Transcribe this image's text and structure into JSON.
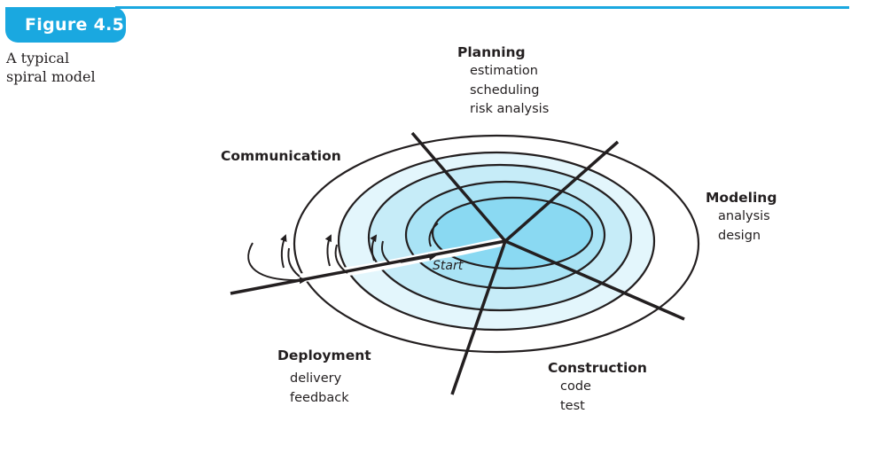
{
  "figure": {
    "badge": "Figure 4.5",
    "caption_lines": [
      "A typical",
      "spiral model"
    ]
  },
  "phases": {
    "planning": {
      "title": "Planning",
      "tasks": [
        "estimation",
        "scheduling",
        "risk analysis"
      ]
    },
    "modeling": {
      "title": "Modeling",
      "tasks": [
        "analysis",
        "design"
      ]
    },
    "construction": {
      "title": "Construction",
      "tasks": [
        "code",
        "test"
      ]
    },
    "deployment": {
      "title": "Deployment",
      "tasks": [
        "delivery",
        "feedback"
      ]
    },
    "communication": {
      "title": "Communication"
    }
  },
  "start_label": "Start",
  "colors": {
    "accent": "#1aa8e0",
    "ring_outer": "#ffffff",
    "ring_2": "#e3f6fc",
    "ring_3": "#c6ecf8",
    "ring_4": "#a9e3f5",
    "ring_core": "#8ad9f2",
    "stroke": "#231f20"
  }
}
